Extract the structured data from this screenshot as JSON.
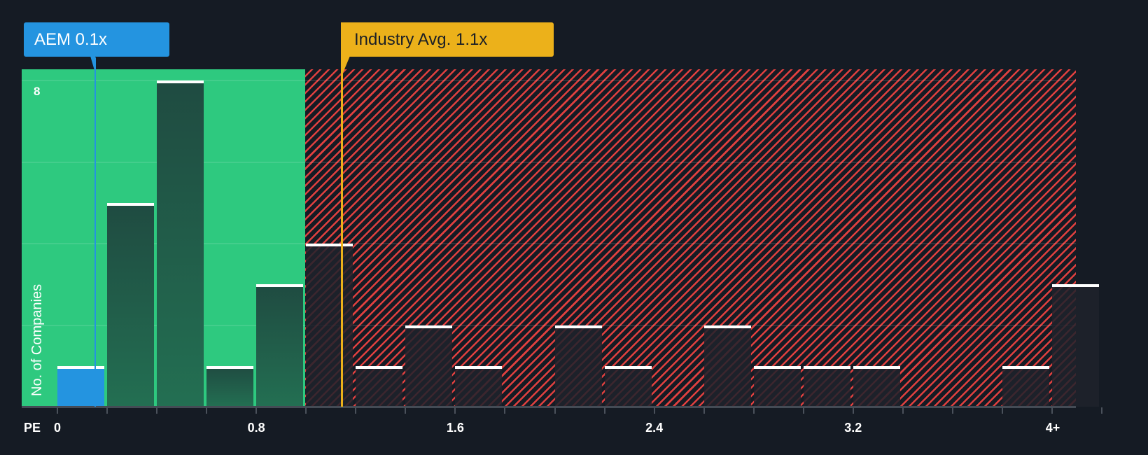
{
  "colors": {
    "background": "#151b24",
    "undervalued_zone": "#2ec97f",
    "overvalued_hatch": "#e0403f",
    "company_highlight": "#2494e0",
    "industry_marker": "#ecb11a"
  },
  "callouts": {
    "company": {
      "label": "AEM 0.1x",
      "ticker": "AEM",
      "value": 0.1
    },
    "industry": {
      "label": "Industry Avg. 1.1x",
      "value": 1.1
    }
  },
  "axes": {
    "y_label": "No. of Companies",
    "y_tick_label": "8",
    "x_prefix": "PE",
    "x_tick_labels": [
      "0",
      "0.8",
      "1.6",
      "2.4",
      "3.2",
      "4+"
    ]
  },
  "chart_data": {
    "type": "bar",
    "title": "",
    "xlabel": "PE",
    "ylabel": "No. of Companies",
    "ylim": [
      0,
      8.3
    ],
    "y_gridlines": [
      0,
      2,
      4,
      6,
      8
    ],
    "x_ticks": [
      0,
      0.8,
      1.6,
      2.4,
      3.2,
      "4+"
    ],
    "bin_width": 0.2,
    "categories": [
      "0-0.2",
      "0.2-0.4",
      "0.4-0.6",
      "0.6-0.8",
      "0.8-1.0",
      "1.0-1.2",
      "1.2-1.4",
      "1.4-1.6",
      "1.6-1.8",
      "1.8-2.0",
      "2.0-2.2",
      "2.2-2.4",
      "2.4-2.6",
      "2.6-2.8",
      "2.8-3.0",
      "3.0-3.2",
      "3.2-3.4",
      "3.4-3.6",
      "3.6-3.8",
      "3.8-4.0",
      "4+"
    ],
    "values": [
      1,
      5,
      8,
      1,
      3,
      4,
      1,
      2,
      1,
      0,
      2,
      1,
      0,
      2,
      1,
      1,
      1,
      0,
      0,
      1,
      3
    ],
    "highlight_bin": 0,
    "company_value": 0.1,
    "industry_average": 1.1,
    "undervalued_threshold": 1.0,
    "annotations": [
      "AEM 0.1x",
      "Industry Avg. 1.1x"
    ],
    "legend": null
  }
}
